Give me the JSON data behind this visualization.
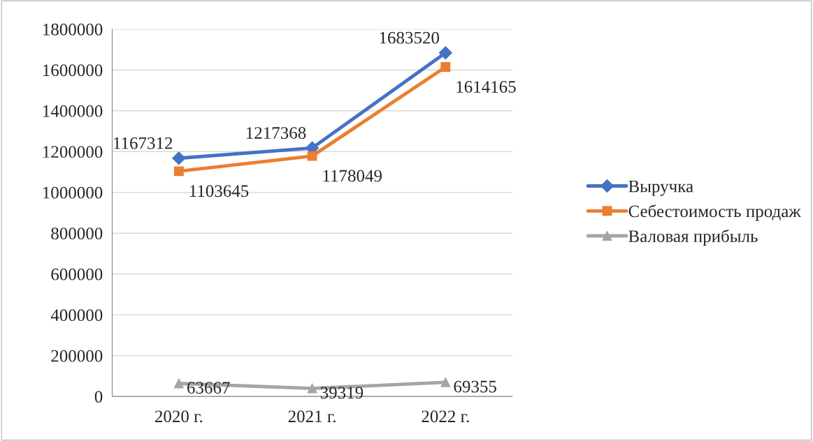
{
  "chart_data": {
    "type": "line",
    "categories": [
      "2020 г.",
      "2021 г.",
      "2022 г."
    ],
    "series": [
      {
        "name": "Выручка",
        "color": "#4472c4",
        "marker": "diamond",
        "values": [
          1167312,
          1217368,
          1683520
        ]
      },
      {
        "name": "Себестоимость продаж",
        "color": "#ed7d31",
        "marker": "square",
        "values": [
          1103645,
          1178049,
          1614165
        ]
      },
      {
        "name": "Валовая прибыль",
        "color": "#a5a5a5",
        "marker": "triangle",
        "values": [
          63667,
          39319,
          69355
        ]
      }
    ],
    "ylim": [
      0,
      1800000
    ],
    "yticks": [
      0,
      200000,
      400000,
      600000,
      800000,
      1000000,
      1200000,
      1400000,
      1600000,
      1800000
    ],
    "grid": "y",
    "legend": "right",
    "data_labels": true
  }
}
